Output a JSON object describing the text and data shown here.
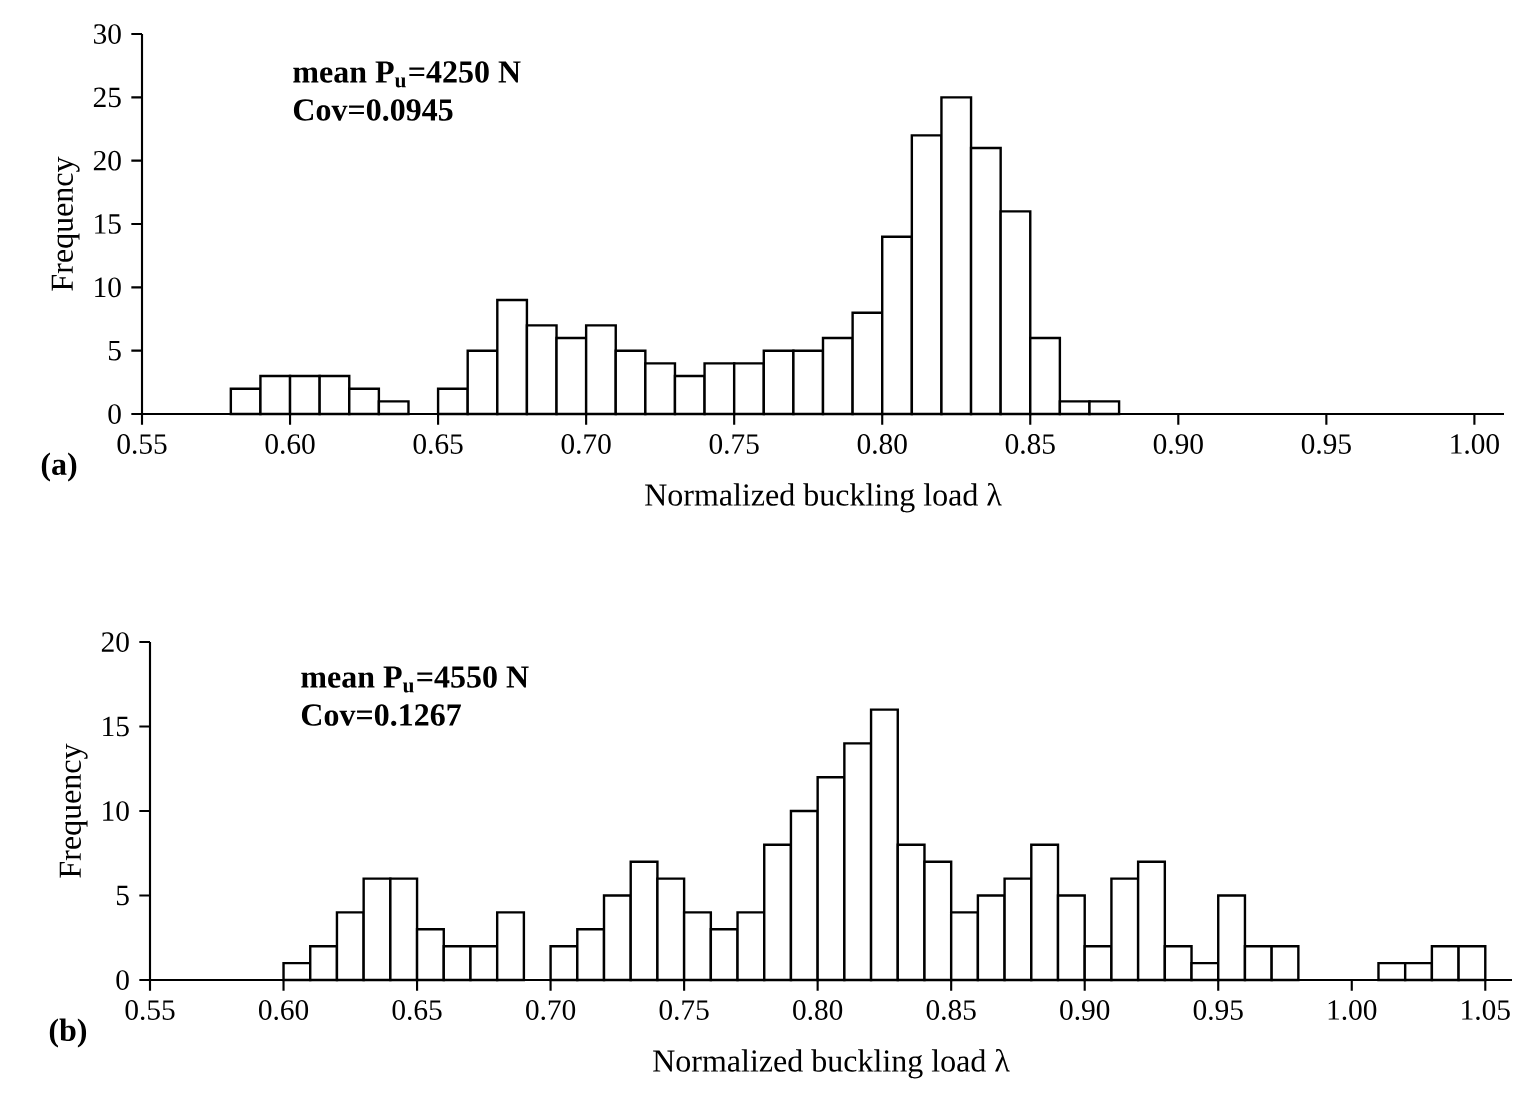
{
  "chart_data": [
    {
      "type": "histogram",
      "color": "#ffffff",
      "bins": [
        0.58,
        0.59,
        0.6,
        0.61,
        0.62,
        0.63,
        0.64,
        0.65,
        0.66,
        0.67,
        0.68,
        0.69,
        0.7,
        0.71,
        0.72,
        0.73,
        0.74,
        0.75,
        0.76,
        0.77,
        0.78,
        0.79,
        0.8,
        0.81,
        0.82,
        0.83,
        0.84,
        0.85,
        0.86,
        0.87,
        0.88
      ],
      "values": [
        2,
        3,
        3,
        3,
        2,
        1,
        0,
        2,
        5,
        9,
        7,
        6,
        7,
        5,
        4,
        3,
        4,
        4,
        5,
        5,
        6,
        8,
        14,
        22,
        25,
        21,
        16,
        6,
        1,
        1
      ],
      "xlim": [
        0.55,
        1.01
      ],
      "ylim": [
        0,
        30
      ],
      "xticks": [
        0.55,
        {
          "value": 0.6,
          "label": "0.60"
        },
        0.65,
        {
          "value": 0.7,
          "label": "0.70"
        },
        0.75,
        {
          "value": 0.8,
          "label": "0.80"
        },
        0.85,
        {
          "value": 0.9,
          "label": "0.90"
        },
        0.95,
        {
          "value": 1.0,
          "label": "1.00"
        }
      ],
      "yticks": [
        0,
        5,
        10,
        15,
        20,
        25,
        30
      ],
      "xlabel": "Normalized buckling load λ",
      "ylabel": "Frequency",
      "annotations": [
        "mean P$_{u}$=4250 N",
        "Cov=0.0945",
        "(a)"
      ]
    },
    {
      "type": "histogram",
      "color": "#ffffff",
      "bins": [
        0.6,
        0.61,
        0.62,
        0.63,
        0.64,
        0.65,
        0.66,
        0.67,
        0.68,
        0.69,
        0.7,
        0.71,
        0.72,
        0.73,
        0.74,
        0.75,
        0.76,
        0.77,
        0.78,
        0.79,
        0.8,
        0.81,
        0.82,
        0.83,
        0.84,
        0.85,
        0.86,
        0.87,
        0.88,
        0.89,
        0.9,
        0.91,
        0.92,
        0.93,
        0.94,
        0.95,
        0.96,
        0.97,
        0.98,
        0.99,
        1.0,
        1.01,
        1.02,
        1.03,
        1.04,
        1.05
      ],
      "values": [
        1,
        2,
        4,
        6,
        6,
        3,
        2,
        2,
        4,
        0,
        2,
        3,
        5,
        7,
        6,
        4,
        3,
        4,
        8,
        10,
        12,
        14,
        16,
        8,
        7,
        4,
        5,
        6,
        8,
        5,
        2,
        6,
        7,
        2,
        1,
        5,
        2,
        2,
        0,
        0,
        0,
        1,
        1,
        2,
        2
      ],
      "xlim": [
        0.55,
        1.06
      ],
      "ylim": [
        0,
        20
      ],
      "xticks": [
        0.55,
        {
          "value": 0.6,
          "label": "0.60"
        },
        0.65,
        {
          "value": 0.7,
          "label": "0.70"
        },
        0.75,
        {
          "value": 0.8,
          "label": "0.80"
        },
        0.85,
        {
          "value": 0.9,
          "label": "0.90"
        },
        0.95,
        {
          "value": 1.0,
          "label": "1.00"
        },
        1.05
      ],
      "yticks": [
        0,
        5,
        10,
        15,
        20
      ],
      "xlabel": "Normalized buckling load λ",
      "ylabel": "Frequency",
      "annotations": [
        "mean P$_{u}$=4550 N",
        "Cov=0.1267",
        "(b)"
      ]
    }
  ]
}
